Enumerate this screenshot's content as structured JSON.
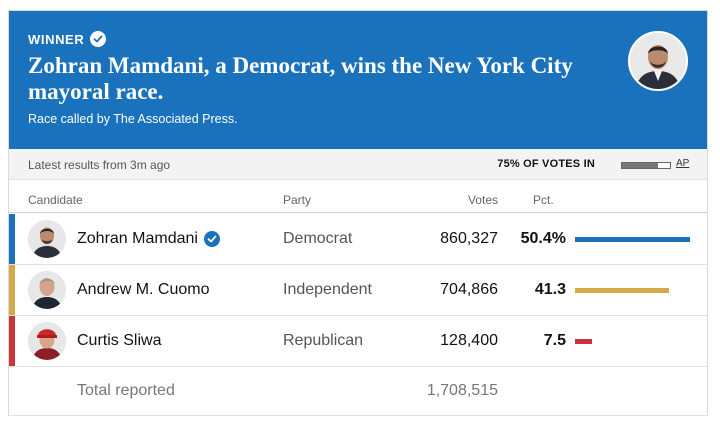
{
  "banner": {
    "winner_label": "WINNER",
    "headline": "Zohran Mamdani, a Democrat, wins the New York City mayoral race.",
    "called_by": "Race called by The Associated Press.",
    "color": "#1a72bd"
  },
  "status": {
    "latest": "Latest results from 3m ago",
    "votes_in": "75% OF VOTES IN",
    "votes_in_fraction": 0.75,
    "source": "AP"
  },
  "table": {
    "headers": {
      "candidate": "Candidate",
      "party": "Party",
      "votes": "Votes",
      "pct": "Pct."
    },
    "rows": [
      {
        "name": "Zohran Mamdani",
        "party": "Democrat",
        "votes": "860,327",
        "pct": "50.4%",
        "pct_value": 50.4,
        "color": "#1a72bd",
        "winner": true
      },
      {
        "name": "Andrew M. Cuomo",
        "party": "Independent",
        "votes": "704,866",
        "pct": "41.3",
        "pct_value": 41.3,
        "color": "#d4a94a",
        "winner": false
      },
      {
        "name": "Curtis Sliwa",
        "party": "Republican",
        "votes": "128,400",
        "pct": "7.5",
        "pct_value": 7.5,
        "color": "#c9343a",
        "winner": false
      }
    ],
    "total_label": "Total reported",
    "total_votes": "1,708,515"
  }
}
